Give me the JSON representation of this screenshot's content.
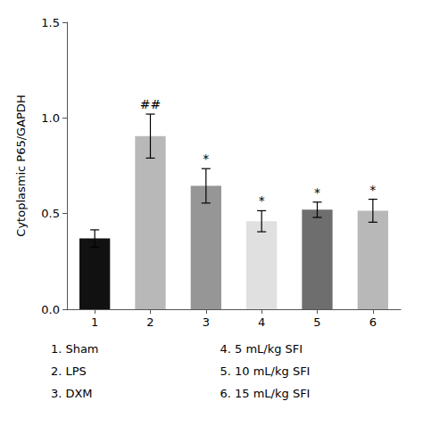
{
  "chart_data": {
    "type": "bar",
    "categories": [
      "1",
      "2",
      "3",
      "4",
      "5",
      "6"
    ],
    "values": [
      0.37,
      0.905,
      0.645,
      0.46,
      0.52,
      0.515
    ],
    "errors": [
      0.045,
      0.115,
      0.09,
      0.055,
      0.04,
      0.06
    ],
    "colors": [
      "#111111",
      "#b8b8b8",
      "#969696",
      "#e0e0e0",
      "#6e6e6e",
      "#b8b8b8"
    ],
    "ylabel": "Cytoplasmic P65/GAPDH",
    "ylim": [
      0,
      1.5
    ],
    "yticks": [
      {
        "value": 0.0,
        "label": "0.0"
      },
      0.5,
      {
        "value": 1.0,
        "label": "1.0"
      },
      1.5
    ],
    "grid": false,
    "annotations": [
      {
        "category": "2",
        "text": "##"
      },
      {
        "category": "3",
        "text": "*"
      },
      {
        "category": "4",
        "text": "*"
      },
      {
        "category": "5",
        "text": "*"
      },
      {
        "category": "6",
        "text": "*"
      }
    ],
    "legend_lines": [
      [
        "1. Sham",
        "4. 5 mL/kg SFI"
      ],
      [
        "2. LPS",
        "5. 10 mL/kg SFI"
      ],
      [
        "3. DXM",
        "6. 15 mL/kg SFI"
      ]
    ]
  }
}
